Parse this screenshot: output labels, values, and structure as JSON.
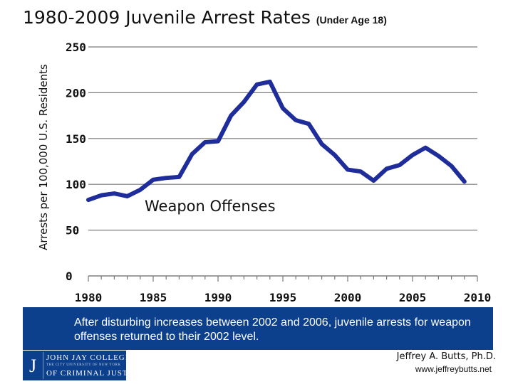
{
  "title": {
    "main": "1980-2009 Juvenile Arrest Rates",
    "sub": "(Under Age 18)"
  },
  "chart_data": {
    "type": "line",
    "title": "1980-2009 Juvenile Arrest Rates (Under Age 18)",
    "xlabel": "",
    "ylabel": "Arrests per 100,000 U.S. Residents",
    "xlim": [
      1980,
      2010
    ],
    "ylim": [
      0,
      250
    ],
    "xticks": [
      "1980",
      "1985",
      "1990",
      "1995",
      "2000",
      "2005",
      "2010"
    ],
    "yticks": [
      "0",
      "50",
      "100",
      "150",
      "200",
      "250"
    ],
    "grid": true,
    "annotation": "Weapon Offenses",
    "series": [
      {
        "name": "Weapon Offenses",
        "color": "#1f2d9a",
        "x": [
          1980,
          1981,
          1982,
          1983,
          1984,
          1985,
          1986,
          1987,
          1988,
          1989,
          1990,
          1991,
          1992,
          1993,
          1994,
          1995,
          1996,
          1997,
          1998,
          1999,
          2000,
          2001,
          2002,
          2003,
          2004,
          2005,
          2006,
          2007,
          2008,
          2009
        ],
        "values": [
          83,
          88,
          90,
          87,
          94,
          105,
          107,
          108,
          133,
          146,
          147,
          175,
          190,
          209,
          212,
          183,
          170,
          166,
          144,
          132,
          116,
          114,
          104,
          117,
          121,
          132,
          140,
          131,
          120,
          103
        ]
      }
    ]
  },
  "banner": {
    "text": "After disturbing increases between 2002 and 2006, juvenile arrests for weapon offenses returned to their 2002 level."
  },
  "logo": {
    "line1": "JOHN JAY COLLEGE",
    "line2": "THE CITY UNIVERSITY OF NEW YORK",
    "line3": "OF CRIMINAL JUSTICE"
  },
  "footer": {
    "author": "Jeffrey A. Butts, Ph.D.",
    "website": "www.jeffreybutts.net"
  }
}
